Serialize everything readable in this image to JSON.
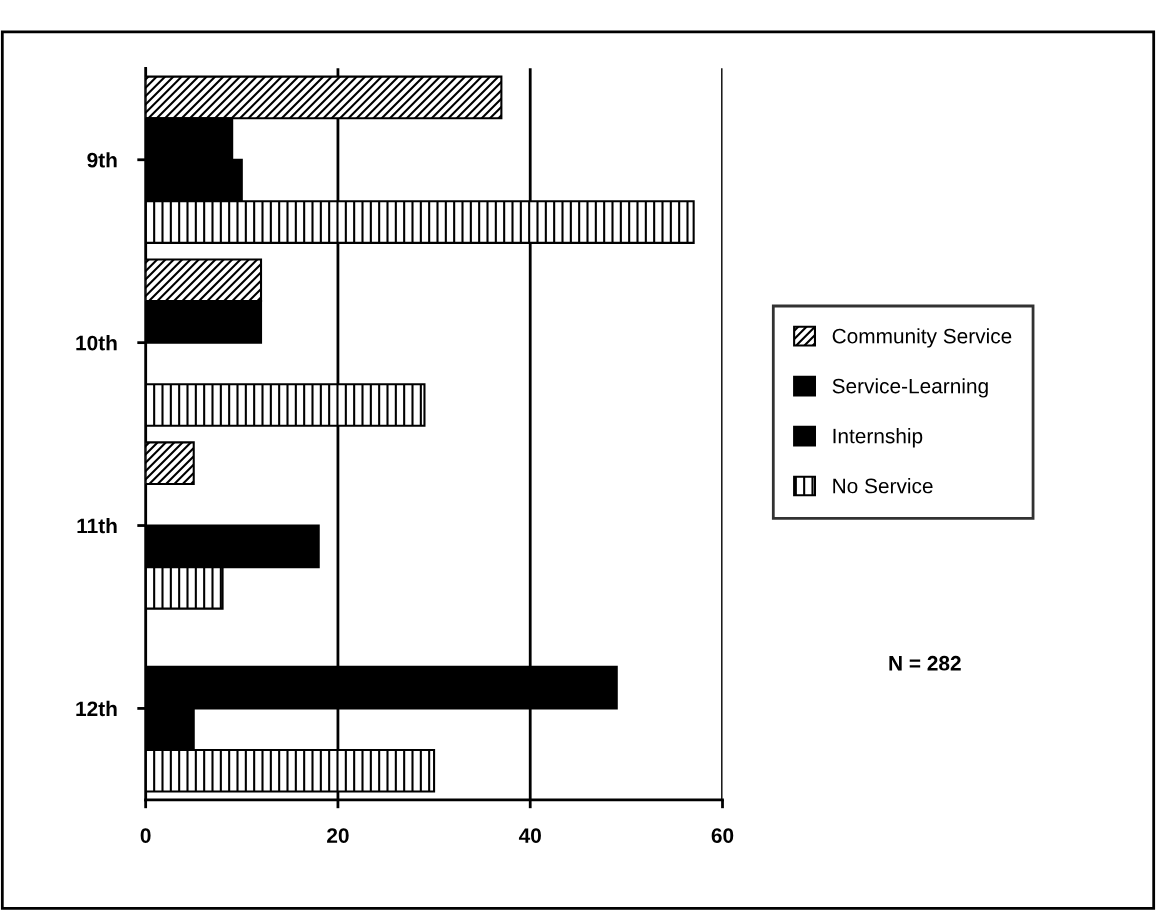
{
  "chart_data": {
    "type": "bar",
    "orientation": "horizontal",
    "categories": [
      "9th",
      "10th",
      "11th",
      "12th"
    ],
    "series": [
      {
        "name": "Community Service",
        "color": "#000000",
        "values": [
          37,
          12,
          5,
          0
        ]
      },
      {
        "name": "Service-Learning",
        "color": "#000000",
        "values": [
          9,
          12,
          0,
          49
        ]
      },
      {
        "name": "Internship",
        "color": "#000000",
        "values": [
          10,
          0,
          18,
          5
        ]
      },
      {
        "name": "No Service",
        "color": "#000000",
        "values": [
          57,
          29,
          8,
          30
        ]
      }
    ],
    "xlim": [
      0,
      60
    ],
    "xticks": [
      0,
      20,
      40,
      60
    ],
    "grid": "x",
    "legend": "right",
    "annotations": [
      "N = 282"
    ]
  }
}
